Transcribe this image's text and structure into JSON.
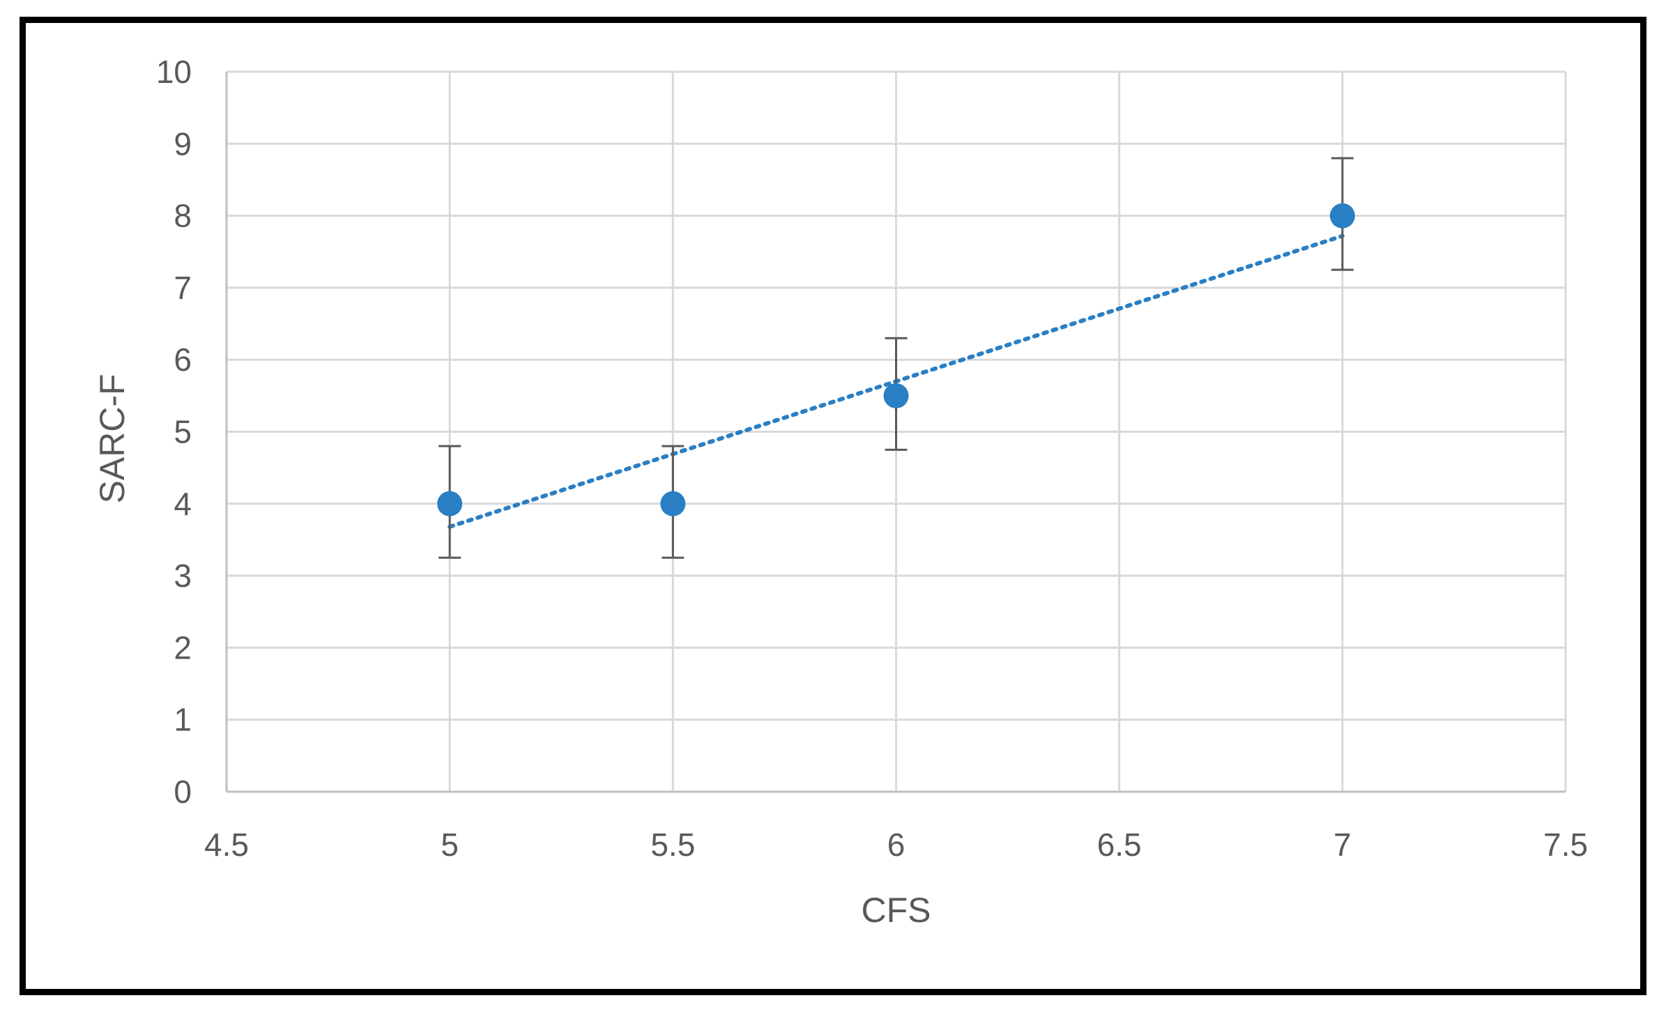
{
  "chart_data": {
    "type": "scatter",
    "title": "",
    "xlabel": "CFS",
    "ylabel": "SARC-F",
    "xlim": [
      4.5,
      7.5
    ],
    "ylim": [
      0,
      10
    ],
    "x_ticks": [
      "4.5",
      "5",
      "5.5",
      "6",
      "6.5",
      "7",
      "7.5"
    ],
    "y_ticks": [
      "0",
      "1",
      "2",
      "3",
      "4",
      "5",
      "6",
      "7",
      "8",
      "9",
      "10"
    ],
    "grid": true,
    "legend": "none",
    "points": [
      {
        "x": 5,
        "y": 4,
        "err_low": 3.25,
        "err_high": 4.8
      },
      {
        "x": 5.5,
        "y": 4,
        "err_low": 3.25,
        "err_high": 4.8
      },
      {
        "x": 6,
        "y": 5.5,
        "err_low": 4.75,
        "err_high": 6.3
      },
      {
        "x": 7,
        "y": 8,
        "err_low": 7.25,
        "err_high": 8.8
      }
    ],
    "trendline": {
      "type": "linear",
      "style": "dotted",
      "x": [
        5,
        7
      ],
      "y": [
        3.68,
        7.72
      ]
    },
    "colors": {
      "marker": "#2A7FC4",
      "trendline": "#2A7FC4",
      "error_bar": "#595959",
      "grid": "#D9D9D9",
      "text": "#595959"
    }
  }
}
